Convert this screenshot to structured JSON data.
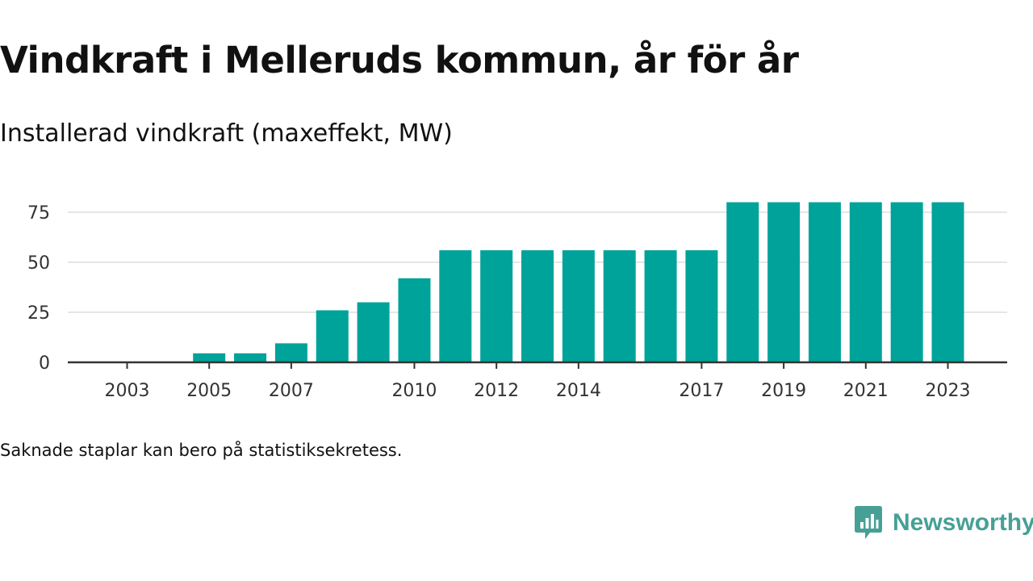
{
  "header": {
    "title": "Vindkraft i Melleruds kommun, år för år",
    "subtitle": "Installerad vindkraft (maxeffekt, MW)"
  },
  "footnote": "Saknade staplar kan bero på statistiksekretess.",
  "brand": {
    "name": "Newsworthy",
    "icon": "newsworthy-logo-icon",
    "color": "#47a096"
  },
  "colors": {
    "bar": "#00a39a",
    "grid": "#dddddd",
    "axis": "#333333",
    "text": "#333333"
  },
  "chart_data": {
    "type": "bar",
    "title": "Vindkraft i Melleruds kommun, år för år",
    "subtitle": "Installerad vindkraft (maxeffekt, MW)",
    "xlabel": "",
    "ylabel": "",
    "categories": [
      "2003",
      "2004",
      "2005",
      "2006",
      "2007",
      "2008",
      "2009",
      "2010",
      "2011",
      "2012",
      "2013",
      "2014",
      "2015",
      "2016",
      "2017",
      "2018",
      "2019",
      "2020",
      "2021",
      "2022",
      "2023"
    ],
    "values": [
      0,
      0,
      4.5,
      4.5,
      9.5,
      26,
      30,
      42,
      56,
      56,
      56,
      56,
      56,
      56,
      56,
      80,
      80,
      80,
      80,
      80,
      80
    ],
    "x_tick_labels": [
      "2003",
      "2005",
      "2007",
      "2010",
      "2012",
      "2014",
      "2017",
      "2019",
      "2021",
      "2023"
    ],
    "y_ticks": [
      0,
      25,
      50,
      75
    ],
    "ylim": [
      0,
      85
    ],
    "grid": true,
    "legend": "none"
  }
}
